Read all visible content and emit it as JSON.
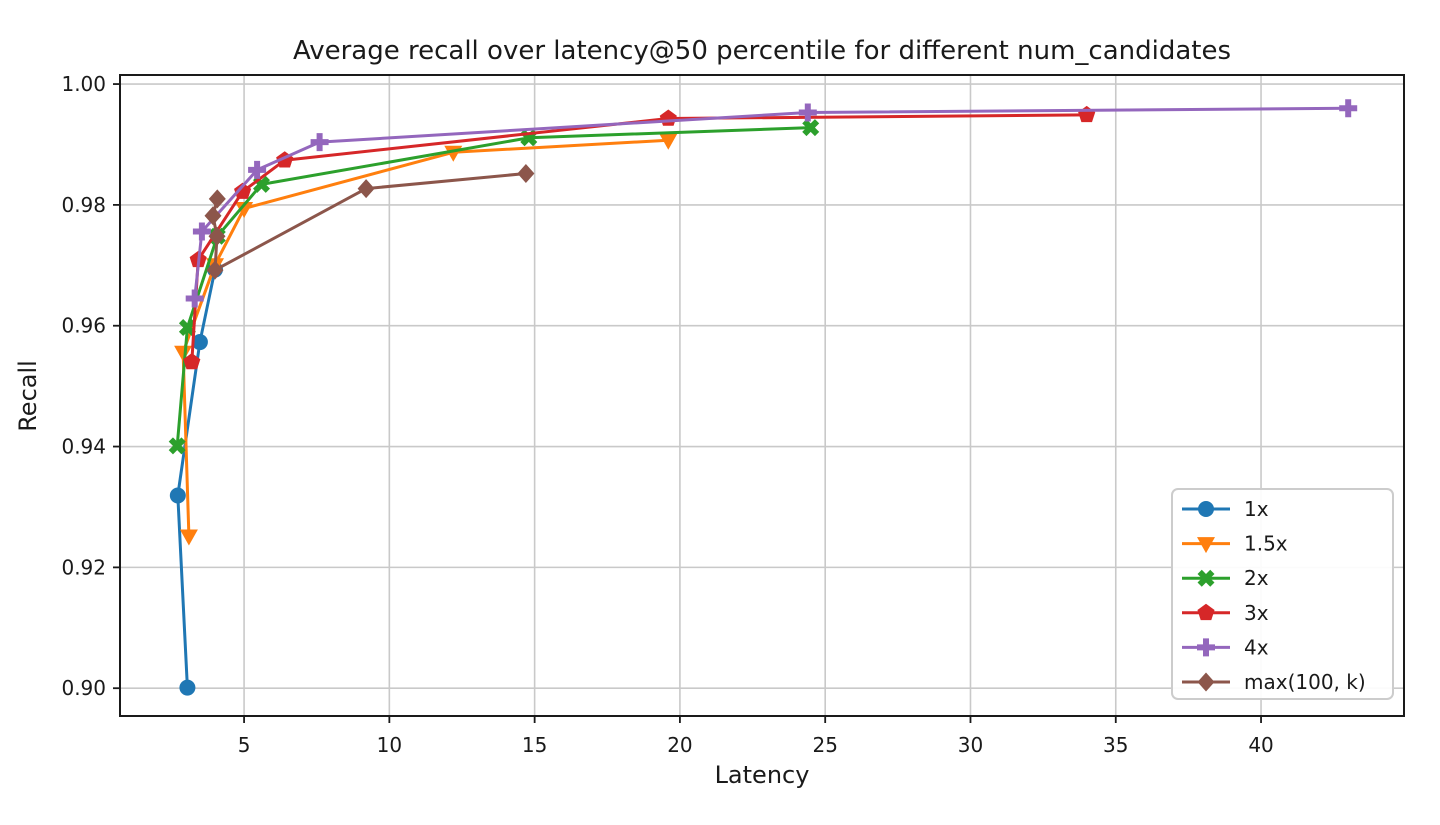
{
  "chart_data": {
    "type": "line",
    "title": "Average recall over latency@50 percentile for different num_candidates",
    "xlabel": "Latency",
    "ylabel": "Recall",
    "xlim": [
      0.73,
      44.92
    ],
    "ylim": [
      0.8954,
      1.0015
    ],
    "x_ticks": [
      5,
      10,
      15,
      20,
      25,
      30,
      35,
      40
    ],
    "y_ticks": [
      0.9,
      0.92,
      0.94,
      0.96,
      0.98,
      1.0
    ],
    "grid": true,
    "grid_color": "#c9c9c9",
    "spine_color": "#1a1a1a",
    "legend_position": "lower right",
    "series": [
      {
        "name": "1x",
        "color": "#1f77b4",
        "marker": "circle",
        "points": [
          [
            3.05,
            0.9001
          ],
          [
            2.72,
            0.9319
          ],
          [
            3.48,
            0.9573
          ],
          [
            4.0,
            0.9693
          ]
        ]
      },
      {
        "name": "1.5x",
        "color": "#ff7f0e",
        "marker": "triangle-down",
        "points": [
          [
            3.1,
            0.9252
          ],
          [
            2.9,
            0.9556
          ],
          [
            4.0,
            0.9701
          ],
          [
            5.0,
            0.9794
          ],
          [
            12.2,
            0.9887
          ],
          [
            19.6,
            0.9907
          ]
        ]
      },
      {
        "name": "2x",
        "color": "#2ca02c",
        "marker": "x-filled",
        "points": [
          [
            2.7,
            0.9401
          ],
          [
            3.05,
            0.9597
          ],
          [
            4.08,
            0.9748
          ],
          [
            5.6,
            0.9834
          ],
          [
            14.8,
            0.9911
          ],
          [
            24.5,
            0.9928
          ]
        ]
      },
      {
        "name": "3x",
        "color": "#d62728",
        "marker": "pentagon",
        "points": [
          [
            3.2,
            0.954
          ],
          [
            3.42,
            0.9709
          ],
          [
            4.95,
            0.9822
          ],
          [
            6.4,
            0.9874
          ],
          [
            19.6,
            0.9943
          ],
          [
            34.0,
            0.9949
          ]
        ]
      },
      {
        "name": "4x",
        "color": "#9467bd",
        "marker": "plus-filled",
        "points": [
          [
            3.3,
            0.9645
          ],
          [
            3.55,
            0.9756
          ],
          [
            5.45,
            0.9858
          ],
          [
            7.6,
            0.9904
          ],
          [
            24.4,
            0.9953
          ],
          [
            43.0,
            0.996
          ]
        ]
      },
      {
        "name": "max(100, k)",
        "color": "#8c564b",
        "marker": "diamond",
        "points": [
          [
            4.08,
            0.981
          ],
          [
            3.93,
            0.9782
          ],
          [
            4.07,
            0.9748
          ],
          [
            4.0,
            0.9692
          ],
          [
            9.2,
            0.9827
          ],
          [
            14.7,
            0.9852
          ]
        ]
      }
    ]
  }
}
